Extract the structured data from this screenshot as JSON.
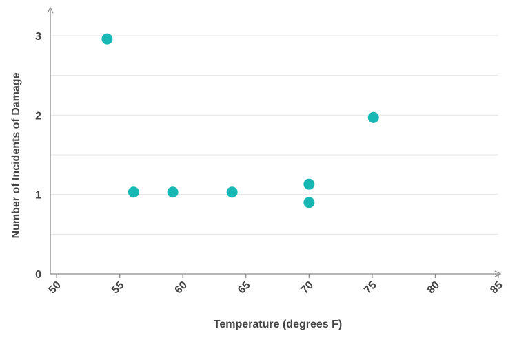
{
  "chart_data": {
    "type": "scatter",
    "title": "",
    "xlabel": "Temperature (degrees F)",
    "ylabel": "Number of Incidents of Damage",
    "xlim": [
      49.5,
      85
    ],
    "ylim": [
      0,
      3.25
    ],
    "x_ticks": [
      50,
      55,
      60,
      65,
      70,
      75,
      80,
      85
    ],
    "y_ticks": [
      0,
      1,
      2,
      3
    ],
    "grid": true,
    "marker_color": "#17b8b4",
    "series": [
      {
        "points": [
          {
            "x": 54,
            "y": 2.96
          },
          {
            "x": 56.1,
            "y": 1.03
          },
          {
            "x": 59.2,
            "y": 1.03
          },
          {
            "x": 63.9,
            "y": 1.03
          },
          {
            "x": 70,
            "y": 1.13
          },
          {
            "x": 70,
            "y": 0.9
          },
          {
            "x": 75.1,
            "y": 1.97
          }
        ]
      }
    ]
  }
}
